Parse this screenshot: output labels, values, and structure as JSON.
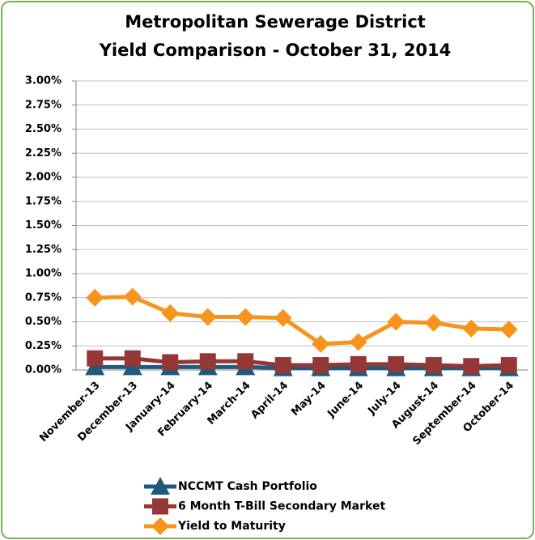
{
  "chart_data": {
    "type": "line",
    "title": "Metropolitan Sewerage District",
    "subtitle": "Yield Comparison - October 31, 2014",
    "categories": [
      "November-13",
      "December-13",
      "January-14",
      "February-14",
      "March-14",
      "April-14",
      "May-14",
      "June-14",
      "July-14",
      "August-14",
      "September-14",
      "October-14"
    ],
    "series": [
      {
        "name": "NCCMT Cash Portfolio",
        "color": "#1f5a7e",
        "marker": "triangle",
        "values": [
          0.03,
          0.03,
          0.03,
          0.03,
          0.03,
          0.02,
          0.02,
          0.02,
          0.02,
          0.02,
          0.02,
          0.02
        ]
      },
      {
        "name": "6 Month T-Bill Secondary Market",
        "color": "#953735",
        "marker": "square",
        "values": [
          0.12,
          0.12,
          0.08,
          0.09,
          0.09,
          0.05,
          0.05,
          0.06,
          0.06,
          0.05,
          0.04,
          0.05
        ]
      },
      {
        "name": "Yield to Maturity",
        "color": "#f7941d",
        "marker": "diamond",
        "values": [
          0.75,
          0.76,
          0.59,
          0.55,
          0.55,
          0.54,
          0.27,
          0.29,
          0.5,
          0.49,
          0.43,
          0.42
        ]
      }
    ],
    "ylim": [
      0,
      3
    ],
    "yticks": [
      {
        "value": 0,
        "label": "0.00%"
      },
      {
        "value": 0.25,
        "label": "0.25%"
      },
      {
        "value": 0.5,
        "label": "0.50%"
      },
      {
        "value": 0.75,
        "label": "0.75%"
      },
      {
        "value": 1,
        "label": "1.00%"
      },
      {
        "value": 1.25,
        "label": "1.25%"
      },
      {
        "value": 1.5,
        "label": "1.50%"
      },
      {
        "value": 1.75,
        "label": "1.75%"
      },
      {
        "value": 2,
        "label": "2.00%"
      },
      {
        "value": 2.25,
        "label": "2.25%"
      },
      {
        "value": 2.5,
        "label": "2.50%"
      },
      {
        "value": 2.75,
        "label": "2.75%"
      },
      {
        "value": 3,
        "label": "3.00%"
      }
    ],
    "grid": true,
    "legend": "bottom"
  }
}
